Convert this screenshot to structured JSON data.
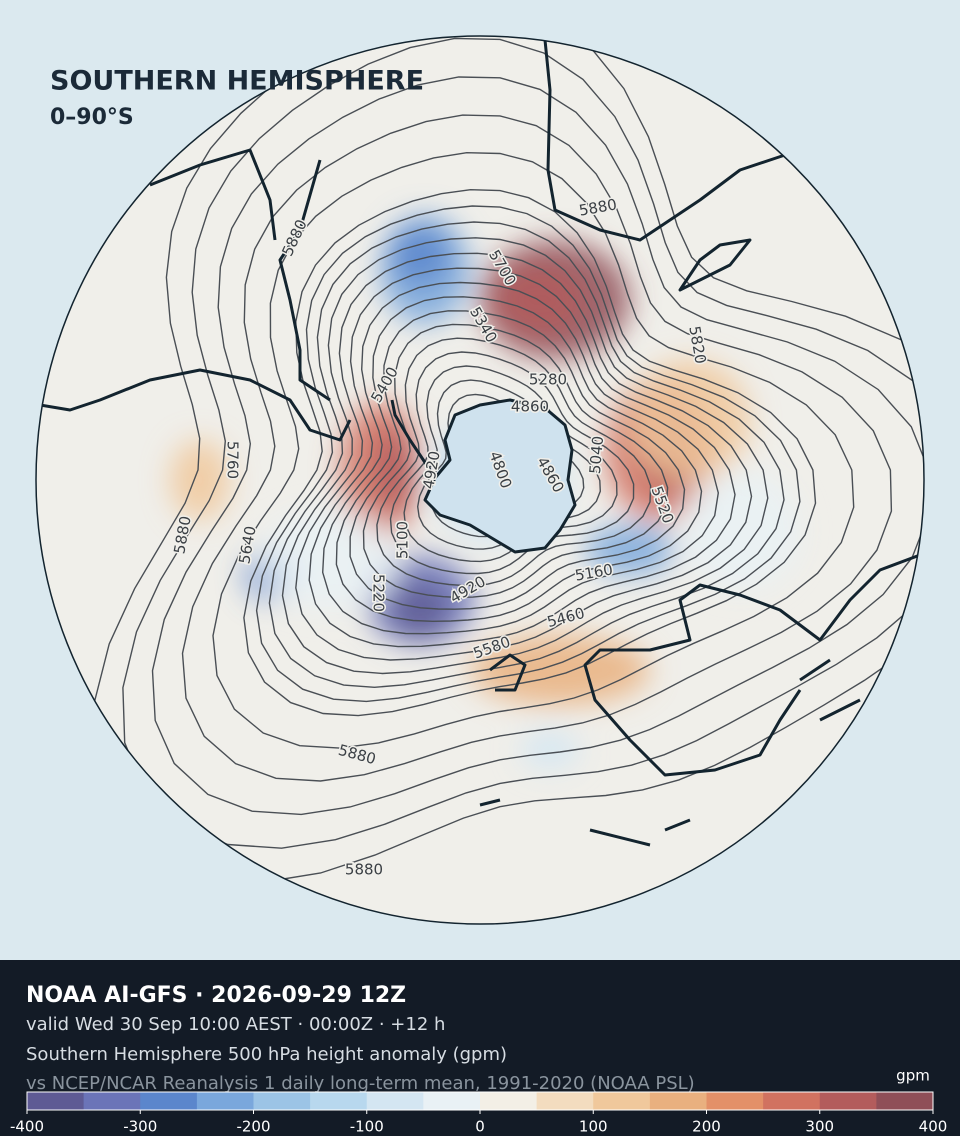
{
  "map": {
    "title": "SOUTHERN HEMISPHERE",
    "subtitle": "0–90°S",
    "contour_labels": [
      5880,
      5880,
      5700,
      5340,
      5820,
      5400,
      5280,
      4860,
      5760,
      4800,
      4860,
      4920,
      5040,
      5520,
      5880,
      5640,
      5100,
      5160,
      5220,
      4920,
      5460,
      5580,
      5880,
      5880
    ]
  },
  "footer": {
    "title": "NOAA AI-GFS · 2026-09-29 12Z",
    "valid": "valid Wed 30 Sep 10:00 AEST · 00:00Z · +12 h",
    "description": "Southern Hemisphere 500 hPa height anomaly (gpm)",
    "reference": "vs NCEP/NCAR Reanalysis 1 daily long-term mean, 1991-2020 (NOAA PSL)"
  },
  "colorbar": {
    "unit": "gpm",
    "lim": [
      -400,
      400
    ],
    "ticks": [
      -400,
      -300,
      -200,
      -100,
      0,
      100,
      200,
      300,
      400
    ],
    "colors": [
      "#5e5a94",
      "#6b74b8",
      "#5b86cc",
      "#7aa7dc",
      "#9cc4e6",
      "#b8d8ee",
      "#d4e6f2",
      "#e9f1f5",
      "#f3efe6",
      "#f3dcbf",
      "#f0c89c",
      "#e9b07f",
      "#e39068",
      "#d17260",
      "#b35c5c",
      "#8f4f58"
    ]
  }
}
